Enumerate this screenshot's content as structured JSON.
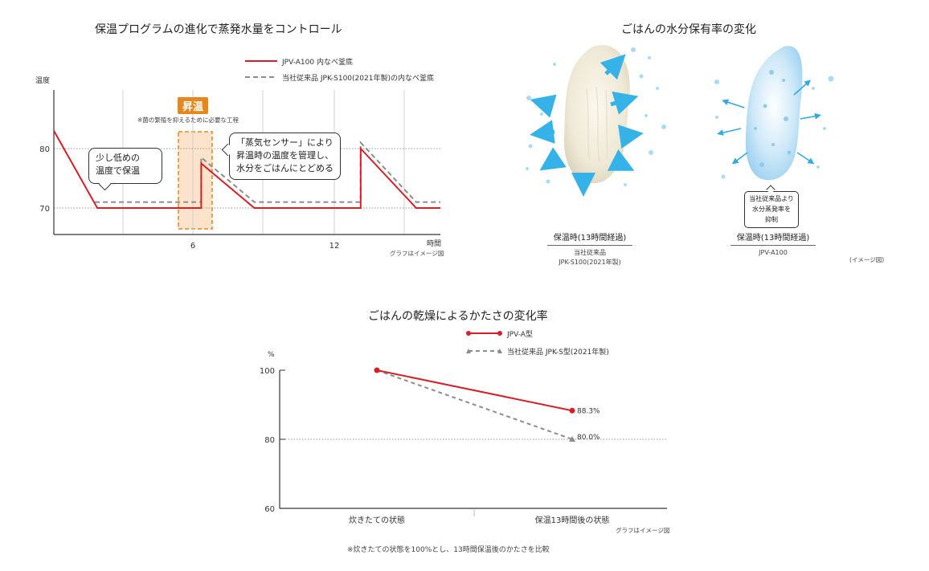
{
  "chart1": {
    "title": "保温プログラムの進化で蒸発水量をコントロール",
    "ylabel": "温度",
    "xlabel": "時間",
    "note": "グラフはイメージ図",
    "legend": [
      "JPV-A100 内なべ釜底",
      "当社従来品 JPK-S100(2021年製)の内なべ釜底"
    ],
    "y_ticks": [
      "80",
      "70"
    ],
    "x_ticks": [
      "6",
      "12"
    ],
    "rise_label": "昇温",
    "rise_note": "※菌の繁殖を抑えるために必要な工程",
    "callout_left": [
      "少し低めの",
      "温度で保温"
    ],
    "callout_right": [
      "「蒸気センサー」により",
      "昇温時の温度を管理し、",
      "水分をごはんにとどめる"
    ],
    "colors": {
      "new": "#d61f26",
      "old": "#8c8c8c",
      "rise": "#e7861c"
    }
  },
  "chart_data": [
    {
      "type": "line",
      "title": "保温プログラムの進化で蒸発水量をコントロール",
      "xlabel": "時間",
      "ylabel": "温度",
      "x_ticks": [
        6,
        12
      ],
      "y_ticks": [
        70,
        80
      ],
      "xlim": [
        0,
        16
      ],
      "ylim": [
        65.5,
        87
      ],
      "series": [
        {
          "name": "JPV-A100 内なべ釜底",
          "x": [
            0,
            1.8,
            6.1,
            6.1,
            8.3,
            12.7,
            12.7,
            15.0,
            16.0
          ],
          "y": [
            83,
            70,
            70,
            77.5,
            70,
            70,
            80,
            70,
            70
          ]
        },
        {
          "name": "当社従来品 JPK-S100(2021年製)の内なべ釜底",
          "x": [
            1.7,
            6.1,
            6.1,
            8.3,
            12.7,
            12.7,
            15.0,
            16.0
          ],
          "y": [
            71,
            71,
            78.5,
            71,
            71,
            81,
            71,
            71
          ]
        }
      ]
    },
    {
      "type": "line",
      "title": "ごはんの乾燥によるかたさの変化率",
      "ylabel": "%",
      "categories": [
        "炊きたての状態",
        "保温13時間後の状態"
      ],
      "ylim": [
        60,
        100
      ],
      "y_ticks": [
        100,
        80,
        60
      ],
      "series": [
        {
          "name": "JPV-A型",
          "values": [
            100,
            88.3
          ],
          "labels": [
            "",
            "88.3%"
          ]
        },
        {
          "name": "当社従来品 JPK-S型(2021年製)",
          "values": [
            100,
            80.0
          ],
          "labels": [
            "",
            "80.0%"
          ]
        }
      ]
    }
  ],
  "section2": {
    "title": "ごはんの水分保有率の変化",
    "left_label": "保温時(13時間経過)",
    "left_sub": [
      "当社従来品",
      "JPK-S100(2021年製)"
    ],
    "right_callout": [
      "当社従来品より",
      "水分蒸発率を",
      "抑制"
    ],
    "right_label": "保温時(13時間経過)",
    "right_sub": "JPV-A100",
    "note": "(イメージ図)"
  },
  "chart3": {
    "title": "ごはんの乾燥によるかたさの変化率",
    "ylabel": "%",
    "legend": [
      "JPV-A型",
      "当社従来品 JPK-S型(2021年製)"
    ],
    "y_ticks": [
      "100",
      "80",
      "60"
    ],
    "categories": [
      "炊きたての状態",
      "保温13時間後の状態"
    ],
    "value_labels": [
      "88.3%",
      "80.0%"
    ],
    "note": "グラフはイメージ図",
    "footnote": "※炊きたての状態を100%とし、13時間保温後のかたさを比較"
  }
}
